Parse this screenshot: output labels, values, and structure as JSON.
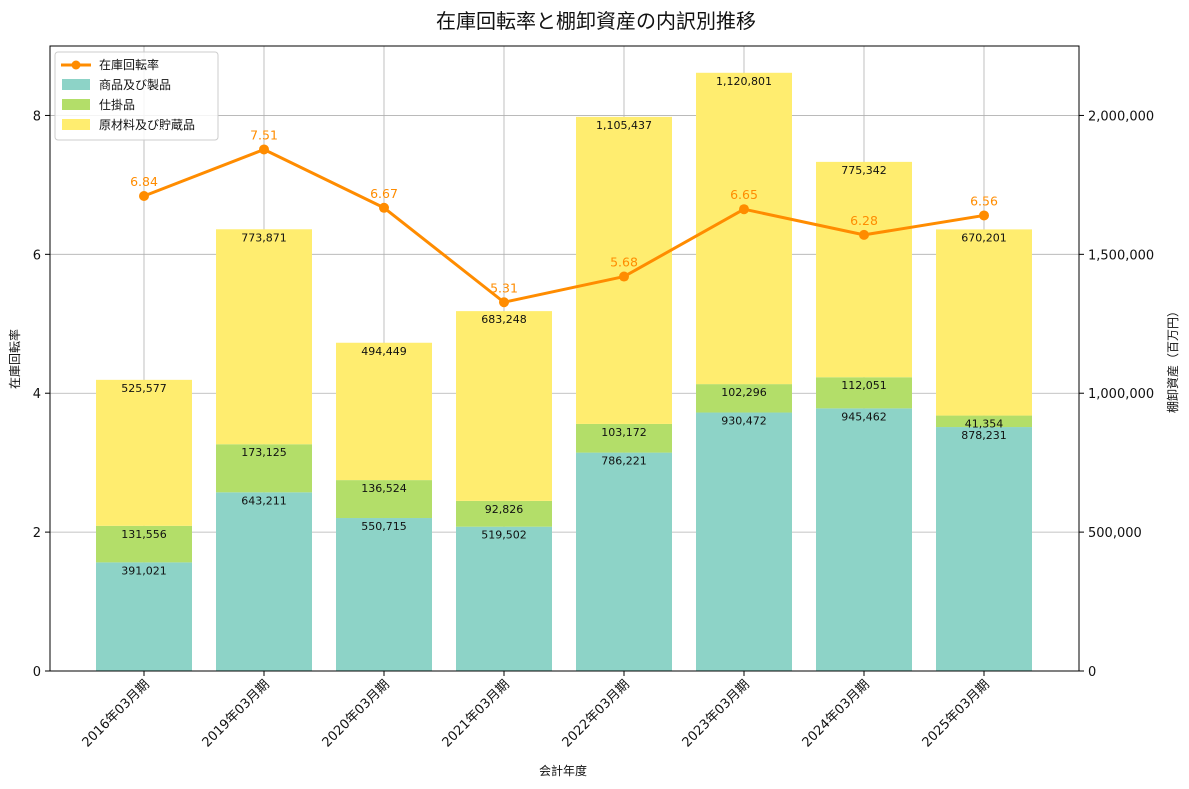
{
  "chart_data": {
    "type": "bar+line",
    "title": "在庫回転率と棚卸資産の内訳別推移",
    "xlabel": "会計年度",
    "ylabel_left": "在庫回転率",
    "ylabel_right": "棚卸資産（百万円）",
    "categories": [
      "2016年03月期",
      "2019年03月期",
      "2020年03月期",
      "2021年03月期",
      "2022年03月期",
      "2023年03月期",
      "2024年03月期",
      "2025年03月期"
    ],
    "ylim_left": [
      0,
      9
    ],
    "ylim_right": [
      0,
      2250000
    ],
    "left_ticks": [
      "0",
      "2",
      "4",
      "6",
      "8"
    ],
    "right_ticks": [
      "0",
      "500,000",
      "1,000,000",
      "1,500,000",
      "2,000,000"
    ],
    "grid": true,
    "legend_position": "top-left",
    "series": [
      {
        "name": "商品及び製品",
        "kind": "bar",
        "axis": "right",
        "color": "#8DD3C7",
        "values": [
          391021,
          643211,
          550715,
          519502,
          786221,
          930472,
          945462,
          878231
        ],
        "labels": [
          "391,021",
          "643,211",
          "550,715",
          "519,502",
          "786,221",
          "930,472",
          "945,462",
          "878,231"
        ]
      },
      {
        "name": "仕掛品",
        "kind": "bar",
        "axis": "right",
        "color": "#B3DE69",
        "values": [
          131556,
          173125,
          136524,
          92826,
          103172,
          102296,
          112051,
          41354
        ],
        "labels": [
          "131,556",
          "173,125",
          "136,524",
          "92,826",
          "103,172",
          "102,296",
          "112,051",
          "41,354"
        ]
      },
      {
        "name": "原材料及び貯蔵品",
        "kind": "bar",
        "axis": "right",
        "color": "#FFED6F",
        "values": [
          525577,
          773871,
          494449,
          683248,
          1105437,
          1120801,
          775342,
          670201
        ],
        "labels": [
          "525,577",
          "773,871",
          "494,449",
          "683,248",
          "1,105,437",
          "1,120,801",
          "775,342",
          "670,201"
        ]
      },
      {
        "name": "在庫回転率",
        "kind": "line",
        "axis": "left",
        "color": "#FF8C00",
        "values": [
          6.84,
          7.51,
          6.67,
          5.31,
          5.68,
          6.65,
          6.28,
          6.56
        ],
        "labels": [
          "6.84",
          "7.51",
          "6.67",
          "5.31",
          "5.68",
          "6.65",
          "6.28",
          "6.56"
        ]
      }
    ]
  }
}
